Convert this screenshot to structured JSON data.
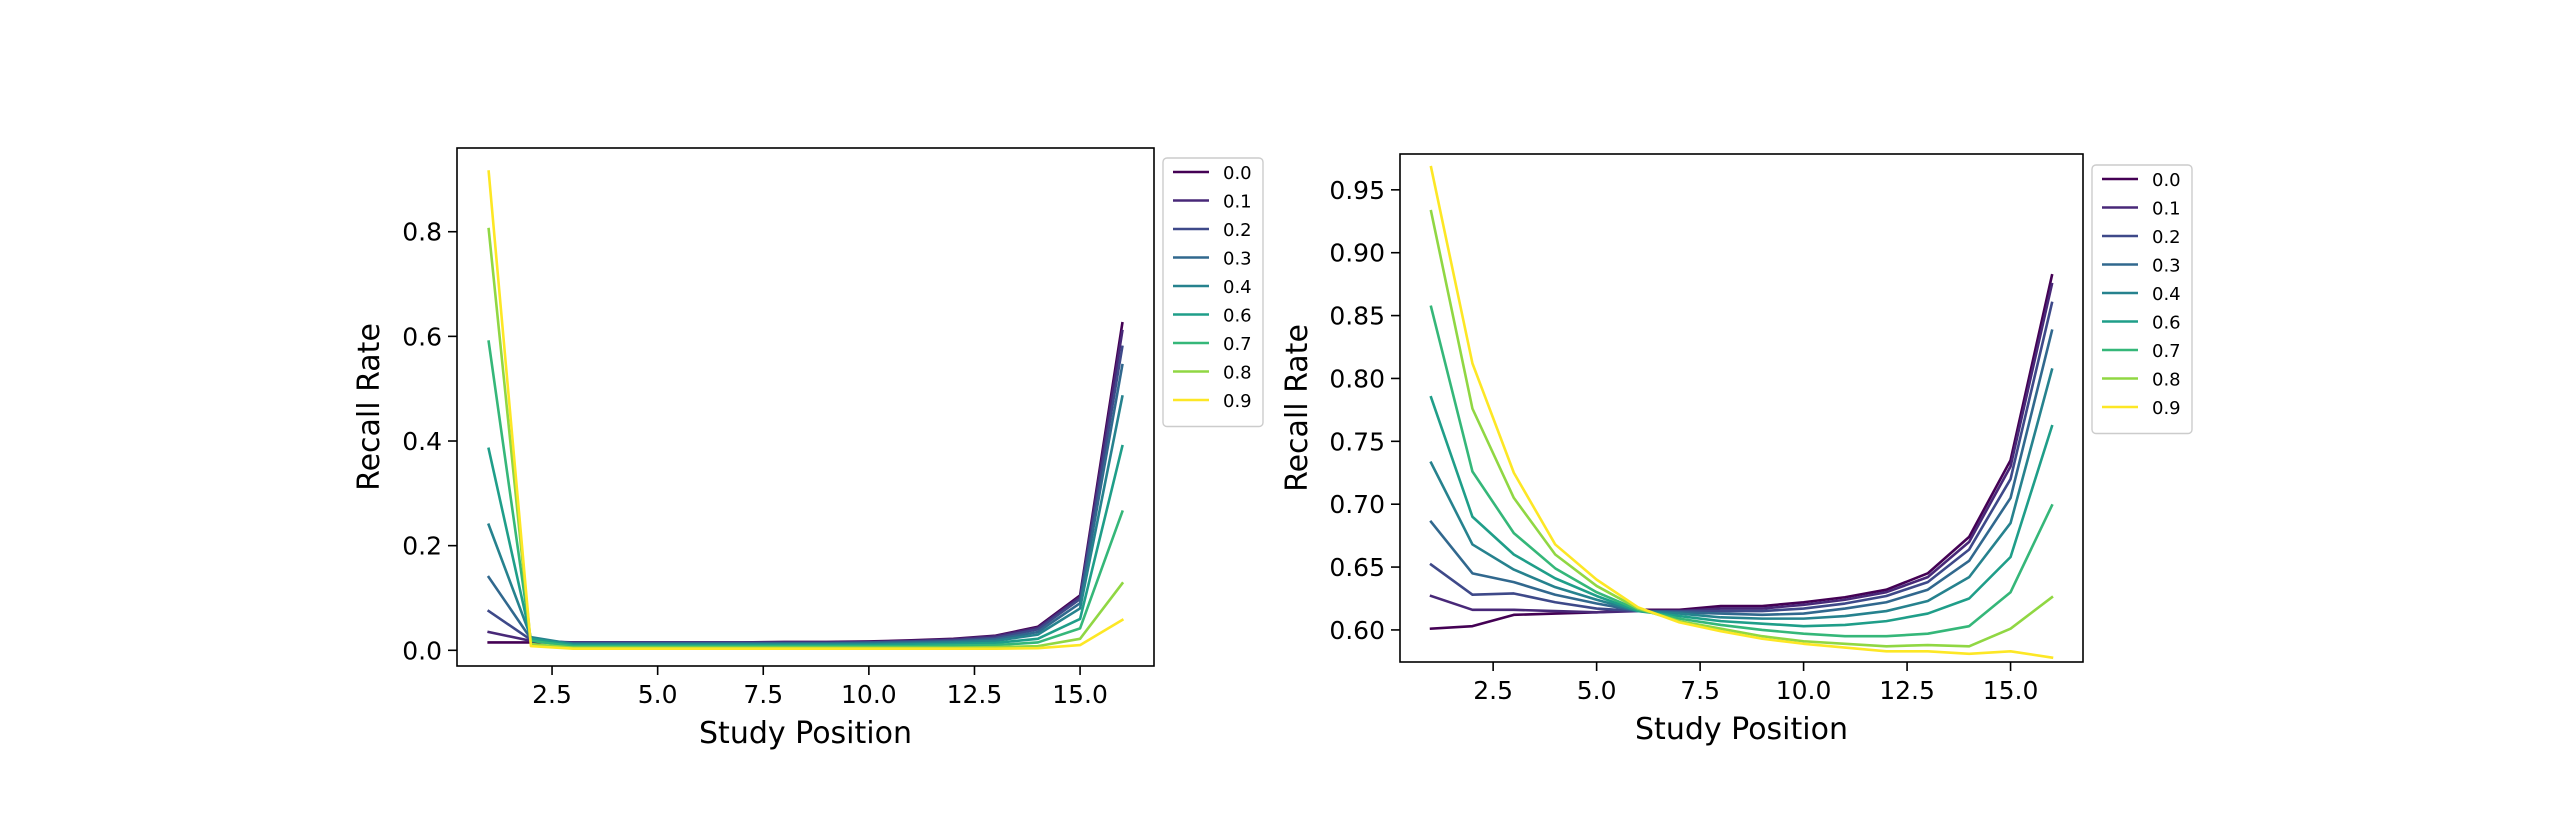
{
  "chart_data": [
    {
      "type": "line",
      "title": "",
      "xlabel": "Study Position",
      "ylabel": "Recall Rate",
      "xlim": [
        0.25,
        16.75
      ],
      "ylim": [
        -0.03,
        0.96
      ],
      "xticks": [
        2.5,
        5.0,
        7.5,
        10.0,
        12.5,
        15.0
      ],
      "xtick_labels": [
        "2.5",
        "5.0",
        "7.5",
        "10.0",
        "12.5",
        "15.0"
      ],
      "yticks": [
        0.0,
        0.2,
        0.4,
        0.6,
        0.8
      ],
      "ytick_labels": [
        "0.0",
        "0.2",
        "0.4",
        "0.6",
        "0.8"
      ],
      "legend_position": "outside-right",
      "grid": false,
      "x": [
        1,
        2,
        3,
        4,
        5,
        6,
        7,
        8,
        9,
        10,
        11,
        12,
        13,
        14,
        15,
        16
      ],
      "series": [
        {
          "name": "0.0",
          "color": "#440154",
          "values": [
            0.015,
            0.015,
            0.015,
            0.015,
            0.015,
            0.015,
            0.015,
            0.016,
            0.016,
            0.017,
            0.019,
            0.022,
            0.028,
            0.045,
            0.105,
            0.625
          ]
        },
        {
          "name": "0.1",
          "color": "#482878",
          "values": [
            0.035,
            0.018,
            0.015,
            0.015,
            0.015,
            0.015,
            0.015,
            0.015,
            0.015,
            0.016,
            0.018,
            0.021,
            0.027,
            0.043,
            0.102,
            0.61
          ]
        },
        {
          "name": "0.2",
          "color": "#3e4989",
          "values": [
            0.075,
            0.02,
            0.014,
            0.014,
            0.014,
            0.014,
            0.014,
            0.014,
            0.014,
            0.015,
            0.017,
            0.019,
            0.024,
            0.04,
            0.098,
            0.58
          ]
        },
        {
          "name": "0.3",
          "color": "#31688e",
          "values": [
            0.14,
            0.022,
            0.013,
            0.013,
            0.013,
            0.013,
            0.013,
            0.013,
            0.013,
            0.014,
            0.015,
            0.017,
            0.021,
            0.035,
            0.09,
            0.545
          ]
        },
        {
          "name": "0.4",
          "color": "#26828e",
          "values": [
            0.24,
            0.025,
            0.012,
            0.012,
            0.012,
            0.012,
            0.012,
            0.012,
            0.012,
            0.012,
            0.013,
            0.015,
            0.018,
            0.03,
            0.08,
            0.485
          ]
        },
        {
          "name": "0.6",
          "color": "#1f9e89",
          "values": [
            0.385,
            0.022,
            0.01,
            0.01,
            0.01,
            0.01,
            0.01,
            0.01,
            0.01,
            0.01,
            0.011,
            0.012,
            0.014,
            0.022,
            0.06,
            0.39
          ]
        },
        {
          "name": "0.7",
          "color": "#35b779",
          "values": [
            0.59,
            0.018,
            0.008,
            0.008,
            0.008,
            0.008,
            0.008,
            0.008,
            0.008,
            0.008,
            0.008,
            0.009,
            0.01,
            0.015,
            0.042,
            0.265
          ]
        },
        {
          "name": "0.8",
          "color": "#90d743",
          "values": [
            0.805,
            0.012,
            0.005,
            0.005,
            0.005,
            0.005,
            0.005,
            0.005,
            0.005,
            0.005,
            0.005,
            0.005,
            0.006,
            0.008,
            0.022,
            0.128
          ]
        },
        {
          "name": "0.9",
          "color": "#fde725",
          "values": [
            0.915,
            0.008,
            0.003,
            0.003,
            0.003,
            0.003,
            0.003,
            0.003,
            0.003,
            0.003,
            0.003,
            0.003,
            0.003,
            0.004,
            0.01,
            0.058
          ]
        }
      ]
    },
    {
      "type": "line",
      "title": "",
      "xlabel": "Study Position",
      "ylabel": "Recall Rate",
      "xlim": [
        0.25,
        16.75
      ],
      "ylim": [
        0.5745,
        0.9785
      ],
      "xticks": [
        2.5,
        5.0,
        7.5,
        10.0,
        12.5,
        15.0
      ],
      "xtick_labels": [
        "2.5",
        "5.0",
        "7.5",
        "10.0",
        "12.5",
        "15.0"
      ],
      "yticks": [
        0.6,
        0.65,
        0.7,
        0.75,
        0.8,
        0.85,
        0.9,
        0.95
      ],
      "ytick_labels": [
        "0.60",
        "0.65",
        "0.70",
        "0.75",
        "0.80",
        "0.85",
        "0.90",
        "0.95"
      ],
      "legend_position": "outside-right",
      "grid": false,
      "x": [
        1,
        2,
        3,
        4,
        5,
        6,
        7,
        8,
        9,
        10,
        11,
        12,
        13,
        14,
        15,
        16
      ],
      "series": [
        {
          "name": "0.0",
          "color": "#440154",
          "values": [
            0.601,
            0.603,
            0.612,
            0.613,
            0.614,
            0.616,
            0.616,
            0.619,
            0.619,
            0.622,
            0.626,
            0.632,
            0.645,
            0.674,
            0.735,
            0.882
          ]
        },
        {
          "name": "0.1",
          "color": "#482878",
          "values": [
            0.627,
            0.616,
            0.616,
            0.615,
            0.614,
            0.615,
            0.615,
            0.617,
            0.617,
            0.62,
            0.624,
            0.63,
            0.642,
            0.67,
            0.73,
            0.875
          ]
        },
        {
          "name": "0.2",
          "color": "#3e4989",
          "values": [
            0.652,
            0.628,
            0.629,
            0.622,
            0.617,
            0.615,
            0.615,
            0.615,
            0.615,
            0.617,
            0.621,
            0.627,
            0.638,
            0.664,
            0.72,
            0.86
          ]
        },
        {
          "name": "0.3",
          "color": "#31688e",
          "values": [
            0.686,
            0.645,
            0.638,
            0.628,
            0.621,
            0.615,
            0.614,
            0.613,
            0.612,
            0.613,
            0.617,
            0.622,
            0.632,
            0.655,
            0.705,
            0.838
          ]
        },
        {
          "name": "0.4",
          "color": "#26828e",
          "values": [
            0.733,
            0.668,
            0.648,
            0.634,
            0.624,
            0.615,
            0.613,
            0.61,
            0.609,
            0.609,
            0.611,
            0.615,
            0.623,
            0.642,
            0.685,
            0.807
          ]
        },
        {
          "name": "0.6",
          "color": "#1f9e89",
          "values": [
            0.785,
            0.69,
            0.66,
            0.641,
            0.627,
            0.615,
            0.611,
            0.607,
            0.605,
            0.603,
            0.604,
            0.607,
            0.613,
            0.625,
            0.658,
            0.762
          ]
        },
        {
          "name": "0.7",
          "color": "#35b779",
          "values": [
            0.857,
            0.726,
            0.677,
            0.649,
            0.63,
            0.616,
            0.609,
            0.604,
            0.6,
            0.597,
            0.595,
            0.595,
            0.597,
            0.603,
            0.63,
            0.699
          ]
        },
        {
          "name": "0.8",
          "color": "#90d743",
          "values": [
            0.933,
            0.776,
            0.705,
            0.66,
            0.635,
            0.617,
            0.607,
            0.601,
            0.595,
            0.591,
            0.589,
            0.587,
            0.588,
            0.587,
            0.601,
            0.626
          ]
        },
        {
          "name": "0.9",
          "color": "#fde725",
          "values": [
            0.968,
            0.812,
            0.725,
            0.668,
            0.64,
            0.618,
            0.606,
            0.599,
            0.593,
            0.589,
            0.586,
            0.583,
            0.583,
            0.581,
            0.583,
            0.578
          ]
        }
      ]
    }
  ]
}
